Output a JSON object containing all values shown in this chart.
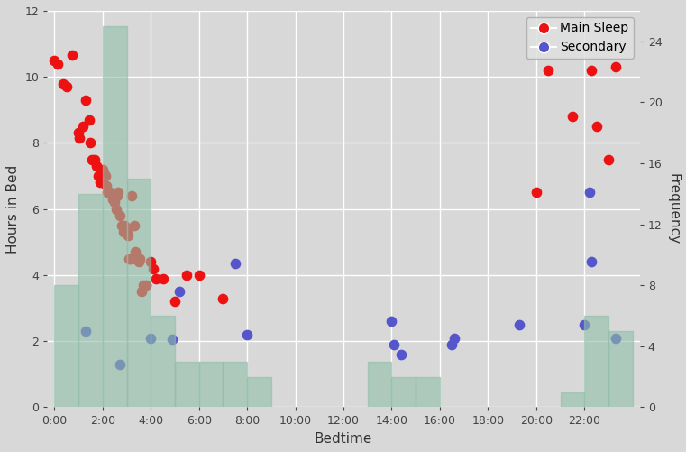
{
  "xlabel": "Bedtime",
  "ylabel": "Hours in Bed",
  "ylabel_right": "Frequency",
  "ylim_left": [
    0,
    12
  ],
  "ylim_right": [
    0,
    26
  ],
  "xlim": [
    -0.3,
    24.3
  ],
  "background_color": "#d8d8d8",
  "plot_bg_color": "#d8d8d8",
  "grid_color": "#ffffff",
  "main_sleep_color": "#ee1111",
  "secondary_color": "#5555cc",
  "hist_color": "#8fbfa8",
  "hist_alpha": 0.6,
  "main_sleep_x": [
    0.0,
    0.15,
    0.35,
    0.5,
    0.75,
    1.0,
    1.05,
    1.2,
    1.3,
    1.45,
    1.5,
    1.55,
    1.65,
    1.75,
    1.8,
    1.9,
    2.0,
    2.05,
    2.1,
    2.15,
    2.2,
    2.3,
    2.4,
    2.5,
    2.55,
    2.6,
    2.65,
    2.7,
    2.8,
    2.85,
    2.9,
    3.0,
    3.05,
    3.1,
    3.15,
    3.2,
    3.3,
    3.35,
    3.4,
    3.5,
    3.55,
    3.6,
    3.7,
    3.8,
    4.0,
    4.1,
    4.2,
    4.5,
    5.0,
    5.5,
    6.0,
    7.0,
    20.0,
    20.5,
    21.5,
    22.3,
    22.5,
    23.0,
    23.3
  ],
  "main_sleep_y": [
    10.5,
    10.4,
    9.8,
    9.7,
    10.65,
    8.3,
    8.15,
    8.5,
    9.3,
    8.7,
    8.0,
    7.5,
    7.5,
    7.3,
    7.0,
    6.8,
    7.2,
    7.1,
    7.0,
    6.7,
    6.5,
    6.5,
    6.3,
    6.2,
    6.0,
    6.4,
    6.5,
    5.8,
    5.5,
    5.3,
    5.5,
    5.3,
    5.2,
    4.5,
    4.5,
    6.4,
    5.5,
    4.7,
    4.5,
    4.4,
    4.5,
    3.5,
    3.7,
    3.7,
    4.4,
    4.2,
    3.9,
    3.9,
    3.2,
    4.0,
    4.0,
    3.3,
    6.5,
    10.2,
    8.8,
    10.2,
    8.5,
    7.5,
    10.3
  ],
  "secondary_x": [
    1.3,
    2.7,
    4.0,
    4.9,
    5.2,
    7.5,
    8.0,
    14.0,
    14.1,
    14.4,
    16.5,
    16.6,
    19.3,
    22.0,
    22.2,
    22.3,
    23.3
  ],
  "secondary_y": [
    2.3,
    1.3,
    2.1,
    2.05,
    3.5,
    4.35,
    2.2,
    2.6,
    1.9,
    1.6,
    1.9,
    2.1,
    2.5,
    2.5,
    6.5,
    4.4,
    2.1
  ],
  "hist_centers": [
    0.5,
    1.5,
    2.5,
    3.5,
    4.5,
    5.5,
    6.5,
    7.5,
    8.5,
    13.5,
    14.5,
    15.5,
    21.5,
    22.5,
    23.5
  ],
  "hist_counts": [
    8,
    14,
    25,
    15,
    6,
    3,
    3,
    3,
    2,
    3,
    2,
    2,
    1,
    6,
    5
  ],
  "xtick_hours": [
    0,
    2,
    4,
    6,
    8,
    10,
    12,
    14,
    16,
    18,
    20,
    22
  ],
  "ytick_left": [
    0,
    2,
    4,
    6,
    8,
    10,
    12
  ],
  "ytick_right": [
    0,
    4,
    8,
    12,
    16,
    20,
    24
  ],
  "marker_size": 55,
  "legend_fontsize": 10,
  "tick_labelsize": 9,
  "label_fontsize": 11
}
